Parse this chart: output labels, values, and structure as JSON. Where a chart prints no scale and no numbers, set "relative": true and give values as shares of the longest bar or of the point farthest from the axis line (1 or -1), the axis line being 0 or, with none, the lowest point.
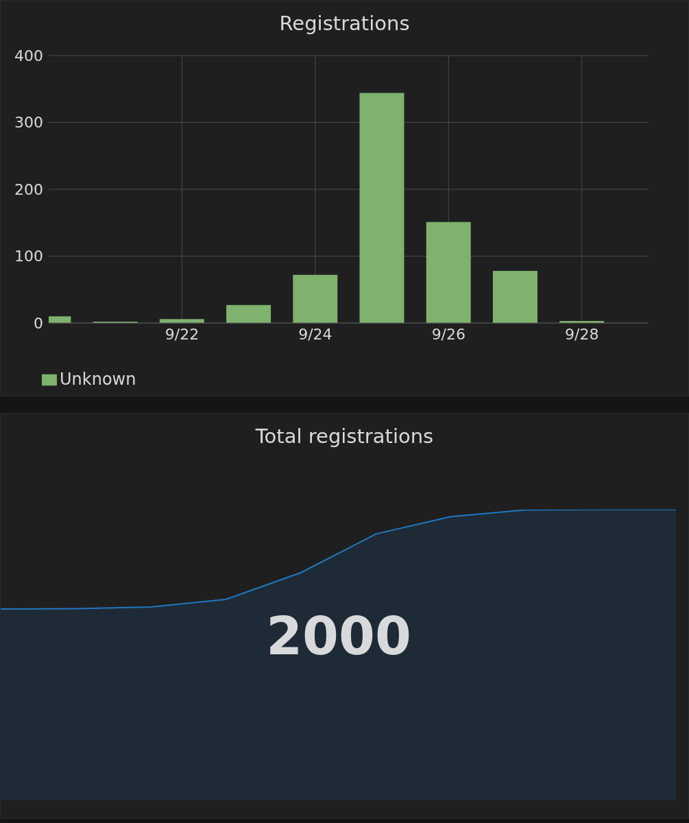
{
  "chart_data": [
    {
      "type": "bar",
      "title": "Registrations",
      "x": [
        "--09-20",
        "--09-21",
        "--09-22",
        "--09-23",
        "--09-24",
        "--09-25",
        "--09-26",
        "--09-27",
        "--09-28"
      ],
      "xlim": [
        "--09-20",
        "--09-29"
      ],
      "xticks": [
        {
          "value": "--09-22",
          "label": "9/22"
        },
        {
          "value": "--09-24",
          "label": "9/24"
        },
        {
          "value": "--09-26",
          "label": "9/26"
        },
        {
          "value": "--09-28",
          "label": "9/28"
        }
      ],
      "ylim": [
        0,
        400
      ],
      "yticks": [
        0,
        100,
        200,
        300,
        400
      ],
      "grid": true,
      "legend": "bottom left",
      "series": [
        {
          "name": "Unknown",
          "color": "#7eb26d",
          "values": [
            10,
            2,
            6,
            27,
            72,
            344,
            151,
            78,
            3
          ]
        }
      ]
    },
    {
      "type": "area",
      "title": "Total registrations",
      "relative": true,
      "tick_labels": false,
      "categories": [
        null,
        null,
        null,
        null,
        null,
        null,
        null,
        null,
        null,
        null
      ],
      "annotations": [
        "2000"
      ],
      "series": [
        {
          "color": "#1f78c1",
          "values": [
            0.658,
            0.659,
            0.665,
            0.691,
            0.783,
            0.916,
            0.976,
            0.999,
            1,
            1
          ]
        }
      ]
    }
  ]
}
